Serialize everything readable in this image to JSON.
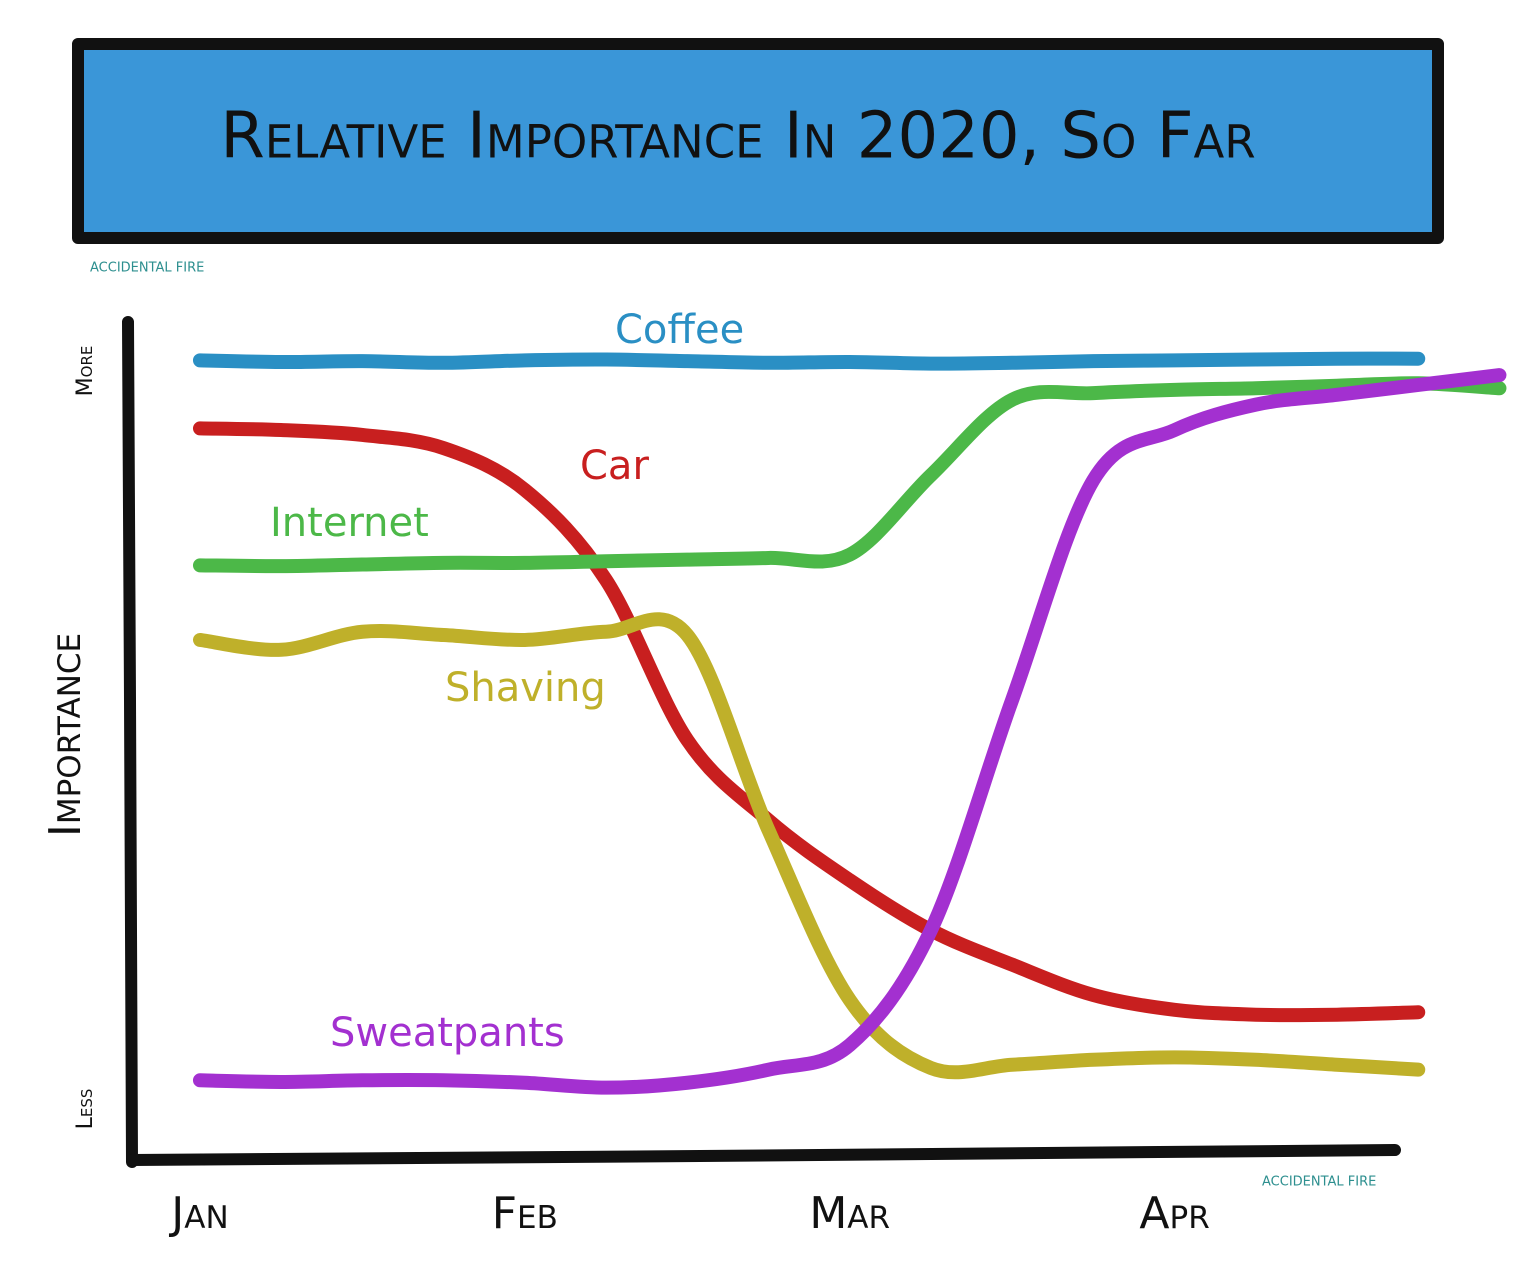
{
  "chart_data": {
    "type": "line",
    "title": "Relative Importance In 2020, So Far",
    "credits": [
      "ACCIDENTAL FIRE",
      "ACCIDENTAL FIRE"
    ],
    "y_label": "Importance",
    "xlim": [
      -0.2,
      3.7
    ],
    "xticks": [
      {
        "value": 0,
        "label": "Jan"
      },
      {
        "value": 1,
        "label": "Feb"
      },
      {
        "value": 2,
        "label": "Mar"
      },
      {
        "value": 3,
        "label": "Apr"
      }
    ],
    "ylim": [
      0,
      100
    ],
    "yticks": [
      {
        "value": 5,
        "label": "Less"
      },
      {
        "value": 95,
        "label": "More"
      }
    ],
    "grid": false,
    "x": [
      0,
      0.25,
      0.5,
      0.75,
      1,
      1.25,
      1.5,
      1.75,
      2,
      2.25,
      2.5,
      2.75,
      3,
      3.25,
      3.5,
      3.75,
      4
    ],
    "series": [
      {
        "name": "Coffee",
        "color": "#2a8fc4",
        "values": [
          96.3,
          96.1,
          96.2,
          96.0,
          96.3,
          96.4,
          96.2,
          96.0,
          96.1,
          95.9,
          96.0,
          96.2,
          96.3,
          96.4,
          96.5,
          96.5,
          null
        ]
      },
      {
        "name": "Car",
        "color": "#c81f1f",
        "values": [
          88.0,
          87.8,
          87.2,
          85.6,
          80.5,
          69.5,
          50.0,
          40.2,
          32.9,
          26.8,
          22.6,
          18.9,
          17.1,
          16.5,
          16.5,
          16.8,
          null
        ]
      },
      {
        "name": "Internet",
        "color": "#4cb848",
        "values": [
          71.3,
          71.2,
          71.4,
          71.6,
          71.6,
          71.8,
          72.0,
          72.2,
          72.6,
          82.3,
          91.5,
          92.3,
          92.7,
          92.9,
          93.2,
          93.5,
          92.9
        ]
      },
      {
        "name": "Shaving",
        "color": "#bfb02a",
        "values": [
          62.2,
          61.0,
          63.2,
          62.8,
          62.2,
          63.2,
          62.8,
          39.0,
          18.3,
          10.0,
          10.4,
          11.0,
          11.3,
          11.0,
          10.4,
          9.8,
          null
        ]
      },
      {
        "name": "Sweatpants",
        "color": "#a330d0",
        "values": [
          8.5,
          8.3,
          8.5,
          8.5,
          8.2,
          7.6,
          8.2,
          9.8,
          12.8,
          26.8,
          54.9,
          81.7,
          87.8,
          90.9,
          92.1,
          93.3,
          94.5
        ]
      }
    ]
  }
}
